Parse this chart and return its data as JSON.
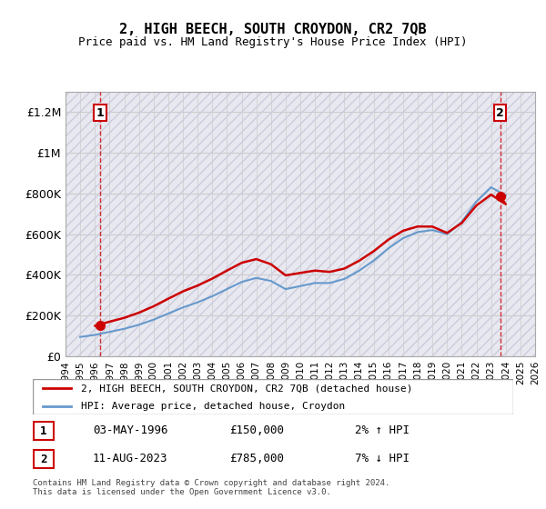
{
  "title": "2, HIGH BEECH, SOUTH CROYDON, CR2 7QB",
  "subtitle": "Price paid vs. HM Land Registry's House Price Index (HPI)",
  "ylabel": "",
  "ylim": [
    0,
    1300000
  ],
  "yticks": [
    0,
    200000,
    400000,
    600000,
    800000,
    1000000,
    1200000
  ],
  "ytick_labels": [
    "£0",
    "£200K",
    "£400K",
    "£600K",
    "£800K",
    "£1M",
    "£1.2M"
  ],
  "xlim_start": 1994,
  "xlim_end": 2026,
  "xticks": [
    1994,
    1995,
    1996,
    1997,
    1998,
    1999,
    2000,
    2001,
    2002,
    2003,
    2004,
    2005,
    2006,
    2007,
    2008,
    2009,
    2010,
    2011,
    2012,
    2013,
    2014,
    2015,
    2016,
    2017,
    2018,
    2019,
    2020,
    2021,
    2022,
    2023,
    2024,
    2025,
    2026
  ],
  "sale1_x": 1996.36,
  "sale1_y": 150000,
  "sale1_label": "1",
  "sale2_x": 2023.62,
  "sale2_y": 785000,
  "sale2_label": "2",
  "hpi_color": "#6699cc",
  "price_color": "#cc0000",
  "dashed_color": "#cc0000",
  "background_hatched_color": "#e8e8f0",
  "grid_color": "#cccccc",
  "legend_label1": "2, HIGH BEECH, SOUTH CROYDON, CR2 7QB (detached house)",
  "legend_label2": "HPI: Average price, detached house, Croydon",
  "annotation1_date": "03-MAY-1996",
  "annotation1_price": "£150,000",
  "annotation1_hpi": "2% ↑ HPI",
  "annotation2_date": "11-AUG-2023",
  "annotation2_price": "£785,000",
  "annotation2_hpi": "7% ↓ HPI",
  "footer": "Contains HM Land Registry data © Crown copyright and database right 2024.\nThis data is licensed under the Open Government Licence v3.0.",
  "hpi_years": [
    1995,
    1996,
    1997,
    1998,
    1999,
    2000,
    2001,
    2002,
    2003,
    2004,
    2005,
    2006,
    2007,
    2008,
    2009,
    2010,
    2011,
    2012,
    2013,
    2014,
    2015,
    2016,
    2017,
    2018,
    2019,
    2020,
    2021,
    2022,
    2023,
    2024
  ],
  "hpi_values": [
    95000,
    105000,
    120000,
    135000,
    155000,
    180000,
    210000,
    240000,
    265000,
    295000,
    330000,
    365000,
    385000,
    370000,
    330000,
    345000,
    360000,
    360000,
    380000,
    420000,
    470000,
    530000,
    580000,
    610000,
    620000,
    600000,
    660000,
    760000,
    830000,
    790000
  ]
}
